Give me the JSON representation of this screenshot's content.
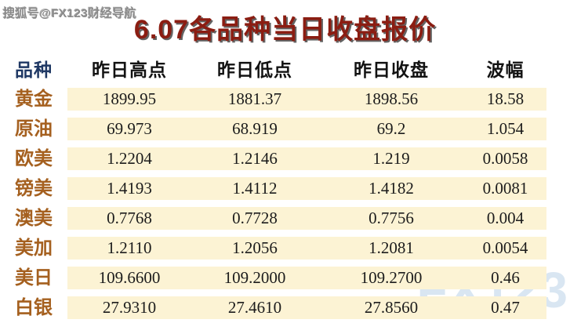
{
  "byline": "搜狐号@FX123财经导航",
  "title": "6.07各品种当日收盘报价",
  "logo_watermark": "FX123",
  "table": {
    "columns": [
      "品种",
      "昨日高点",
      "昨日低点",
      "昨日收盘",
      "波幅"
    ],
    "rows": [
      {
        "name": "黄金",
        "high": "1899.95",
        "low": "1881.37",
        "close": "1898.56",
        "range": "18.58"
      },
      {
        "name": "原油",
        "high": "69.973",
        "low": "68.919",
        "close": "69.2",
        "range": "1.054"
      },
      {
        "name": "欧美",
        "high": "1.2204",
        "low": "1.2146",
        "close": "1.219",
        "range": "0.0058"
      },
      {
        "name": "镑美",
        "high": "1.4193",
        "low": "1.4112",
        "close": "1.4182",
        "range": "0.0081"
      },
      {
        "name": "澳美",
        "high": "0.7768",
        "low": "0.7728",
        "close": "0.7756",
        "range": "0.004"
      },
      {
        "name": "美加",
        "high": "1.2110",
        "low": "1.2056",
        "close": "1.2081",
        "range": "0.0054"
      },
      {
        "name": "美日",
        "high": "109.6600",
        "low": "109.2000",
        "close": "109.2700",
        "range": "0.46"
      },
      {
        "name": "白银",
        "high": "27.9310",
        "low": "27.4610",
        "close": "27.8560",
        "range": "0.47"
      }
    ]
  },
  "colors": {
    "title_red": "#8b1d12",
    "header_navy": "#1f3864",
    "row_label_orange": "#a5601f",
    "band_cream": "#fcf3d4",
    "logo_light_blue": "#d9e6f2",
    "byline_gray": "#8a8a8a"
  }
}
